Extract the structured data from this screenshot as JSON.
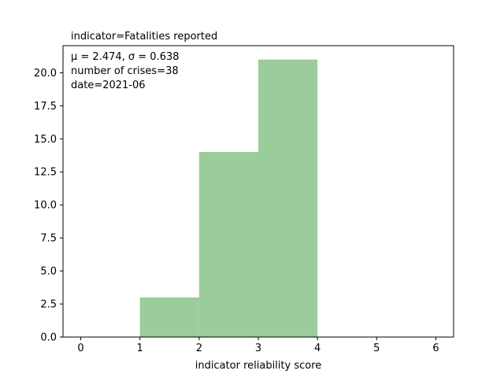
{
  "chart_data": {
    "type": "bar",
    "title": "indicator=Fatalities reported",
    "xlabel": "indicator reliability score",
    "ylabel": "",
    "xlim": [
      -0.3,
      6.3
    ],
    "ylim": [
      0,
      22.05
    ],
    "x_ticks": [
      0,
      1,
      2,
      3,
      4,
      5,
      6
    ],
    "y_ticks": [
      0.0,
      2.5,
      5.0,
      7.5,
      10.0,
      12.5,
      15.0,
      17.5,
      20.0
    ],
    "x_tick_labels": [
      "0",
      "1",
      "2",
      "3",
      "4",
      "5",
      "6"
    ],
    "y_tick_labels": [
      "0.0",
      "2.5",
      "5.0",
      "7.5",
      "10.0",
      "12.5",
      "15.0",
      "17.5",
      "20.0"
    ],
    "bins": [
      {
        "start": 1,
        "end": 2,
        "value": 3
      },
      {
        "start": 2,
        "end": 3,
        "value": 14
      },
      {
        "start": 3,
        "end": 4,
        "value": 21
      }
    ],
    "bar_color": "#9bcc9b",
    "annotations": [
      "μ = 2.474,  σ = 0.638",
      "number of crises=38",
      "date=2021-06"
    ],
    "grid": false,
    "legend": "none"
  }
}
